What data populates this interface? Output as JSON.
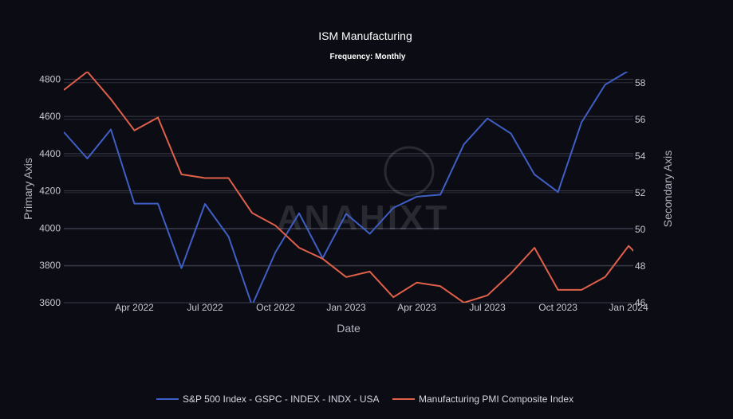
{
  "chart_data": {
    "type": "line",
    "title": "ISM Manufacturing",
    "subtitle": "Frequency: Monthly",
    "xlabel": "Date",
    "ylabel": "Primary Axis",
    "y2label": "Secondary Axis",
    "watermark": "ANAHIXT",
    "x": [
      "2022-01",
      "2022-02",
      "2022-03",
      "2022-04",
      "2022-05",
      "2022-06",
      "2022-07",
      "2022-08",
      "2022-09",
      "2022-10",
      "2022-11",
      "2022-12",
      "2023-01",
      "2023-02",
      "2023-03",
      "2023-04",
      "2023-05",
      "2023-06",
      "2023-07",
      "2023-08",
      "2023-09",
      "2023-10",
      "2023-11",
      "2023-12",
      "2024-01",
      "2024-02"
    ],
    "x_ticks": [
      {
        "date": "2022-04",
        "label": "Apr 2022"
      },
      {
        "date": "2022-07",
        "label": "Jul 2022"
      },
      {
        "date": "2022-10",
        "label": "Oct 2022"
      },
      {
        "date": "2023-01",
        "label": "Jan 2023"
      },
      {
        "date": "2023-04",
        "label": "Apr 2023"
      },
      {
        "date": "2023-07",
        "label": "Jul 2023"
      },
      {
        "date": "2023-10",
        "label": "Oct 2023"
      },
      {
        "date": "2024-01",
        "label": "Jan 2024"
      }
    ],
    "ylim": [
      3600,
      4840
    ],
    "y_ticks": [
      3600,
      3800,
      4000,
      4200,
      4400,
      4600,
      4800
    ],
    "y2lim": [
      46,
      58.6
    ],
    "y2_ticks": [
      46,
      48,
      50,
      52,
      54,
      56,
      58
    ],
    "grid": true,
    "legend_position": "bottom-center",
    "series": [
      {
        "name": "S&P 500 Index - GSPC - INDEX - INDX - USA",
        "axis": "primary",
        "color": "#3f5fc4",
        "values": [
          4516,
          4374,
          4530,
          4132,
          4132,
          3785,
          4130,
          3955,
          3585,
          3872,
          4080,
          3839,
          4077,
          3970,
          4109,
          4169,
          4180,
          4450,
          4589,
          4508,
          4288,
          4194,
          4568,
          4770,
          4845,
          4960
        ]
      },
      {
        "name": "Manufacturing PMI Composite Index",
        "axis": "secondary",
        "color": "#e0604a",
        "values": [
          57.6,
          58.6,
          57.1,
          55.4,
          56.1,
          53.0,
          52.8,
          52.8,
          50.9,
          50.2,
          49.0,
          48.4,
          47.4,
          47.7,
          46.3,
          47.1,
          46.9,
          46.0,
          46.4,
          47.6,
          49.0,
          46.7,
          46.7,
          47.4,
          49.1,
          47.8
        ]
      }
    ]
  }
}
